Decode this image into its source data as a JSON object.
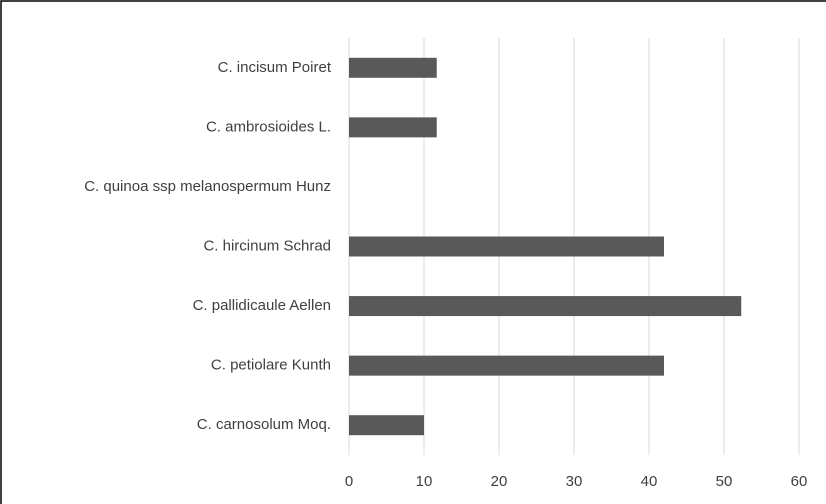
{
  "chart_data": {
    "type": "hbar",
    "categories": [
      "C. incisum Poiret",
      "C. ambrosioides L.",
      "C. quinoa ssp melanospermum Hunz",
      "C. hircinum Schrad",
      "C. pallidicaule Aellen",
      "C. petiolare Kunth",
      "C. carnosolum Moq."
    ],
    "values": [
      11.7,
      11.7,
      0,
      42,
      52.3,
      42,
      10
    ],
    "color": "#595959",
    "xlim": [
      0,
      60
    ],
    "xticks": [
      0,
      10,
      20,
      30,
      40,
      50,
      60
    ],
    "grid": true
  }
}
